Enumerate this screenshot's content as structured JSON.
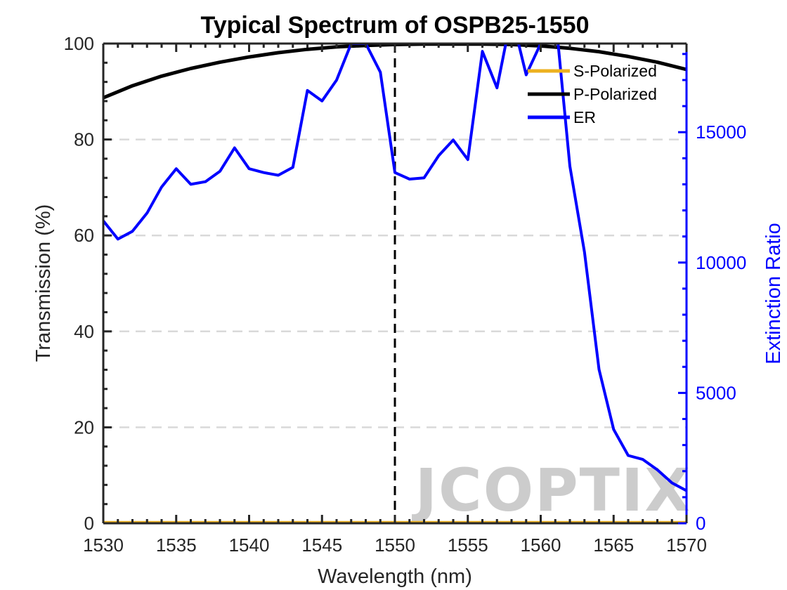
{
  "chart_data": {
    "type": "line",
    "title": "Typical Spectrum of OSPB25-1550",
    "xlabel": "Wavelength (nm)",
    "ylabel": "Transmission (%)",
    "y2label": "Extinction Ratio",
    "xlim": [
      1530,
      1570
    ],
    "ylim": [
      0,
      100
    ],
    "y2lim": [
      0,
      18400
    ],
    "xticks": [
      1530,
      1535,
      1540,
      1545,
      1550,
      1555,
      1560,
      1565,
      1570
    ],
    "yticks": [
      0,
      20,
      40,
      60,
      80,
      100
    ],
    "y2ticks": [
      0,
      5000,
      10000,
      15000
    ],
    "grid": "horizontal-dashed",
    "legend_position": "top-right",
    "reference_line_x": 1550,
    "colors": {
      "s": "#EDB120",
      "p": "#000000",
      "er": "#0000FF",
      "ref": "#000000"
    },
    "series": [
      {
        "name": "S-Polarized",
        "axis": "left",
        "x": [
          1530,
          1535,
          1540,
          1545,
          1550,
          1555,
          1560,
          1565,
          1570
        ],
        "y": [
          0.1,
          0.1,
          0.1,
          0.1,
          0.1,
          0.1,
          0.1,
          0.1,
          0.1
        ]
      },
      {
        "name": "P-Polarized",
        "axis": "left",
        "x": [
          1530,
          1532,
          1534,
          1536,
          1538,
          1540,
          1542,
          1544,
          1546,
          1548,
          1550,
          1552,
          1554,
          1556,
          1558,
          1560,
          1562,
          1564,
          1566,
          1568,
          1570
        ],
        "y": [
          88.7,
          91.2,
          93.2,
          94.8,
          96.1,
          97.2,
          98.1,
          98.8,
          99.3,
          99.6,
          99.8,
          99.9,
          99.9,
          99.9,
          99.8,
          99.5,
          99.0,
          98.3,
          97.3,
          96.1,
          94.6
        ]
      },
      {
        "name": "ER",
        "axis": "right",
        "x": [
          1530,
          1531,
          1532,
          1533,
          1534,
          1535,
          1536,
          1537,
          1538,
          1539,
          1540,
          1541,
          1542,
          1543,
          1544,
          1545,
          1546,
          1547,
          1548,
          1549,
          1550,
          1551,
          1552,
          1553,
          1554,
          1555,
          1556,
          1557,
          1558,
          1559,
          1560,
          1561,
          1562,
          1563,
          1564,
          1565,
          1566,
          1567,
          1568,
          1569,
          1570
        ],
        "y": [
          11600,
          10900,
          11200,
          11900,
          12900,
          13600,
          13000,
          13100,
          13500,
          14400,
          13600,
          13450,
          13350,
          13650,
          16600,
          16200,
          17000,
          18400,
          18400,
          17300,
          13450,
          13200,
          13250,
          14100,
          14700,
          13950,
          18100,
          16700,
          19500,
          17200,
          18400,
          19500,
          13700,
          10400,
          5900,
          3600,
          2600,
          2450,
          2050,
          1550,
          1250
        ]
      }
    ],
    "watermark": "JCOPTIX"
  }
}
